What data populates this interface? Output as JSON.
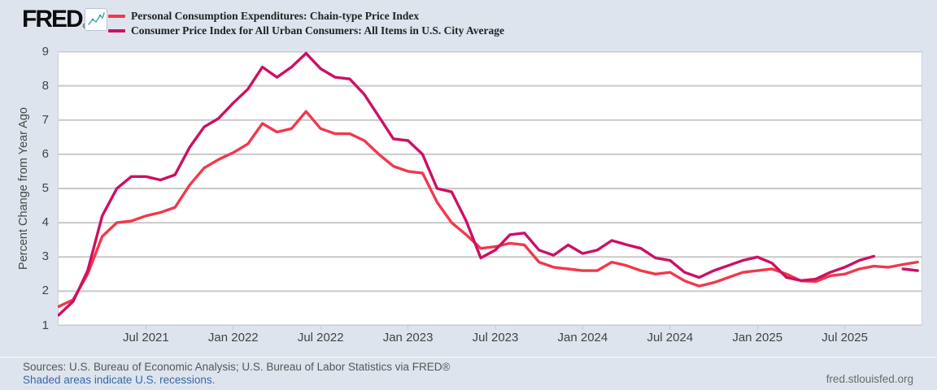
{
  "header": {
    "logo": "FRED",
    "registered": "®",
    "logo_icon": "sparkline-chart-icon",
    "legend": [
      {
        "id": "pce",
        "label": "Personal Consumption Expenditures: Chain-type Price Index",
        "color": "#f0394b"
      },
      {
        "id": "cpi",
        "label": "Consumer Price Index for All Urban Consumers: All Items in U.S. City Average",
        "color": "#cc1064"
      }
    ]
  },
  "footer": {
    "sources": "Sources: U.S. Bureau of Economic Analysis; U.S. Bureau of Labor Statistics via FRED®",
    "recessions_note": "Shaded areas indicate U.S. recessions.",
    "site": "fred.stlouisfed.org"
  },
  "chart_data": {
    "type": "line",
    "title": "",
    "xlabel": "",
    "ylabel": "Percent Change from Year Ago",
    "ylim": [
      1,
      9
    ],
    "yticks": [
      1,
      2,
      3,
      4,
      5,
      6,
      7,
      8,
      9
    ],
    "grid": "horizontal",
    "legend_position": "top-left",
    "x_start": "2021-01",
    "x_end": "2025-12",
    "x_frequency": "monthly",
    "xticks": [
      {
        "label": "Jul 2021",
        "month_index": 6
      },
      {
        "label": "Jan 2022",
        "month_index": 12
      },
      {
        "label": "Jul 2022",
        "month_index": 18
      },
      {
        "label": "Jan 2023",
        "month_index": 24
      },
      {
        "label": "Jul 2023",
        "month_index": 30
      },
      {
        "label": "Jan 2024",
        "month_index": 36
      },
      {
        "label": "Jul 2024",
        "month_index": 42
      },
      {
        "label": "Jan 2025",
        "month_index": 48
      },
      {
        "label": "Jul 2025",
        "month_index": 54
      }
    ],
    "series": [
      {
        "id": "pce",
        "name": "Personal Consumption Expenditures: Chain-type Price Index",
        "color": "#f0394b",
        "values": [
          1.55,
          1.75,
          2.5,
          3.6,
          4.0,
          4.05,
          4.2,
          4.3,
          4.45,
          5.1,
          5.6,
          5.85,
          6.05,
          6.3,
          6.9,
          6.65,
          6.75,
          7.25,
          6.75,
          6.6,
          6.6,
          6.4,
          6.0,
          5.65,
          5.5,
          5.45,
          4.6,
          4.0,
          3.65,
          3.25,
          3.3,
          3.4,
          3.35,
          2.85,
          2.7,
          2.65,
          2.6,
          2.6,
          2.85,
          2.75,
          2.6,
          2.5,
          2.55,
          2.3,
          2.15,
          2.25,
          2.4,
          2.55,
          2.6,
          2.65,
          2.5,
          2.3,
          2.28,
          2.45,
          2.5,
          2.65,
          2.73,
          2.7,
          2.78,
          2.85
        ]
      },
      {
        "id": "cpi",
        "name": "Consumer Price Index for All Urban Consumers: All Items in U.S. City Average",
        "color": "#cc1064",
        "values": [
          1.3,
          1.7,
          2.6,
          4.2,
          5.0,
          5.35,
          5.35,
          5.25,
          5.4,
          6.2,
          6.8,
          7.05,
          7.5,
          7.9,
          8.55,
          8.25,
          8.55,
          8.95,
          8.5,
          8.25,
          8.2,
          7.75,
          7.1,
          6.45,
          6.4,
          6.0,
          5.0,
          4.9,
          4.05,
          2.97,
          3.2,
          3.65,
          3.7,
          3.2,
          3.05,
          3.35,
          3.1,
          3.2,
          3.48,
          3.36,
          3.25,
          2.97,
          2.9,
          2.55,
          2.4,
          2.6,
          2.75,
          2.9,
          3.0,
          2.82,
          2.4,
          2.31,
          2.35,
          2.55,
          2.7,
          2.9,
          3.02,
          null,
          2.65,
          2.6
        ]
      }
    ]
  }
}
